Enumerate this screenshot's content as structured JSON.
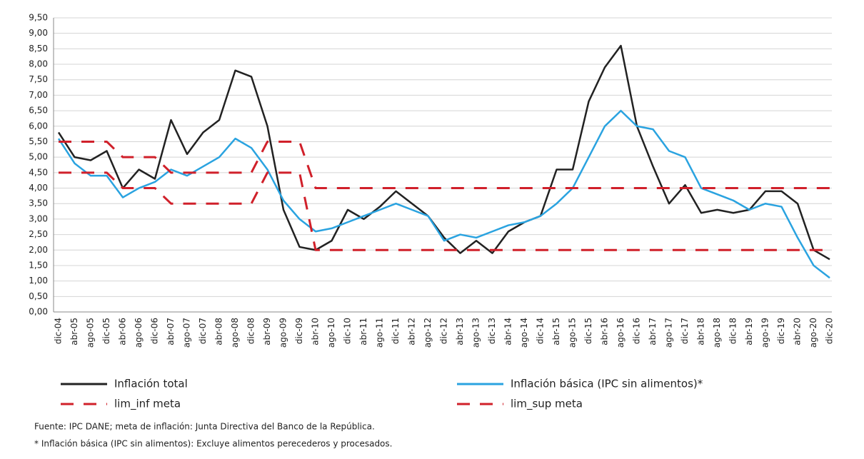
{
  "chart_data": {
    "type": "line",
    "categories": [
      "dic-04",
      "abr-05",
      "ago-05",
      "dic-05",
      "abr-06",
      "ago-06",
      "dic-06",
      "abr-07",
      "ago-07",
      "dic-07",
      "abr-08",
      "ago-08",
      "dic-08",
      "abr-09",
      "ago-09",
      "dic-09",
      "abr-10",
      "ago-10",
      "dic-10",
      "abr-11",
      "ago-11",
      "dic-11",
      "abr-12",
      "ago-12",
      "dic-12",
      "abr-13",
      "ago-13",
      "dic-13",
      "abr-14",
      "ago-14",
      "dic-14",
      "abr-15",
      "ago-15",
      "dic-15",
      "abr-16",
      "ago-16",
      "dic-16",
      "abr-17",
      "ago-17",
      "dic-17",
      "abr-18",
      "ago-18",
      "dic-18",
      "abr-19",
      "ago-19",
      "dic-19",
      "abr-20",
      "ago-20",
      "dic-20"
    ],
    "series": [
      {
        "name": "Inflación total",
        "color": "#222222",
        "dash": false,
        "values": [
          5.8,
          5.0,
          4.9,
          5.2,
          4.0,
          4.6,
          4.3,
          6.2,
          5.1,
          5.8,
          6.2,
          7.8,
          7.6,
          6.0,
          3.3,
          2.1,
          2.0,
          2.3,
          3.3,
          3.0,
          3.4,
          3.9,
          3.5,
          3.1,
          2.4,
          1.9,
          2.3,
          1.9,
          2.6,
          2.9,
          3.1,
          4.6,
          4.6,
          6.8,
          7.9,
          8.6,
          6.0,
          4.7,
          3.5,
          4.1,
          3.2,
          3.3,
          3.2,
          3.3,
          3.9,
          3.9,
          3.5,
          2.0,
          1.7
        ]
      },
      {
        "name": "Inflación básica (IPC sin alimentos)*",
        "color": "#2aa3e0",
        "dash": false,
        "values": [
          5.6,
          4.8,
          4.4,
          4.4,
          3.7,
          4.0,
          4.2,
          4.6,
          4.4,
          4.7,
          5.0,
          5.6,
          5.3,
          4.6,
          3.6,
          3.0,
          2.6,
          2.7,
          2.9,
          3.1,
          3.3,
          3.5,
          3.3,
          3.1,
          2.3,
          2.5,
          2.4,
          2.6,
          2.8,
          2.9,
          3.1,
          3.5,
          4.0,
          5.0,
          6.0,
          6.5,
          6.0,
          5.9,
          5.2,
          5.0,
          4.0,
          3.8,
          3.6,
          3.3,
          3.5,
          3.4,
          2.4,
          1.5,
          1.1
        ]
      },
      {
        "name": "lim_inf meta",
        "color": "#d0202a",
        "dash": true,
        "values": [
          4.5,
          4.5,
          4.5,
          4.5,
          4.0,
          4.0,
          4.0,
          3.5,
          3.5,
          3.5,
          3.5,
          3.5,
          3.5,
          4.5,
          4.5,
          4.5,
          2.0,
          2.0,
          2.0,
          2.0,
          2.0,
          2.0,
          2.0,
          2.0,
          2.0,
          2.0,
          2.0,
          2.0,
          2.0,
          2.0,
          2.0,
          2.0,
          2.0,
          2.0,
          2.0,
          2.0,
          2.0,
          2.0,
          2.0,
          2.0,
          2.0,
          2.0,
          2.0,
          2.0,
          2.0,
          2.0,
          2.0,
          2.0,
          2.0
        ]
      },
      {
        "name": "lim_sup meta",
        "color": "#d0202a",
        "dash": true,
        "values": [
          5.5,
          5.5,
          5.5,
          5.5,
          5.0,
          5.0,
          5.0,
          4.5,
          4.5,
          4.5,
          4.5,
          4.5,
          4.5,
          5.5,
          5.5,
          5.5,
          4.0,
          4.0,
          4.0,
          4.0,
          4.0,
          4.0,
          4.0,
          4.0,
          4.0,
          4.0,
          4.0,
          4.0,
          4.0,
          4.0,
          4.0,
          4.0,
          4.0,
          4.0,
          4.0,
          4.0,
          4.0,
          4.0,
          4.0,
          4.0,
          4.0,
          4.0,
          4.0,
          4.0,
          4.0,
          4.0,
          4.0,
          4.0,
          4.0
        ]
      }
    ],
    "ylim": [
      0,
      9.5
    ],
    "yticks": [
      {
        "value": 0,
        "label": "0,00"
      },
      {
        "value": 0.5,
        "label": "0,50"
      },
      {
        "value": 1,
        "label": "1,00"
      },
      {
        "value": 1.5,
        "label": "1,50"
      },
      {
        "value": 2,
        "label": "2,00"
      },
      {
        "value": 2.5,
        "label": "2,50"
      },
      {
        "value": 3,
        "label": "3,00"
      },
      {
        "value": 3.5,
        "label": "3,50"
      },
      {
        "value": 4,
        "label": "4,00"
      },
      {
        "value": 4.5,
        "label": "4,50"
      },
      {
        "value": 5,
        "label": "5,00"
      },
      {
        "value": 5.5,
        "label": "5,50"
      },
      {
        "value": 6,
        "label": "6,00"
      },
      {
        "value": 6.5,
        "label": "6,50"
      },
      {
        "value": 7,
        "label": "7,00"
      },
      {
        "value": 7.5,
        "label": "7,50"
      },
      {
        "value": 8,
        "label": "8,00"
      },
      {
        "value": 8.5,
        "label": "8,50"
      },
      {
        "value": 9,
        "label": "9,00"
      },
      {
        "value": 9.5,
        "label": "9,50"
      }
    ],
    "grid": true,
    "legend": "bottom",
    "source": "Fuente: IPC DANE; meta de inflación: Junta Directiva del Banco de la República.",
    "note": "* Inflación básica (IPC sin alimentos): Excluye alimentos perecederos y procesados."
  }
}
